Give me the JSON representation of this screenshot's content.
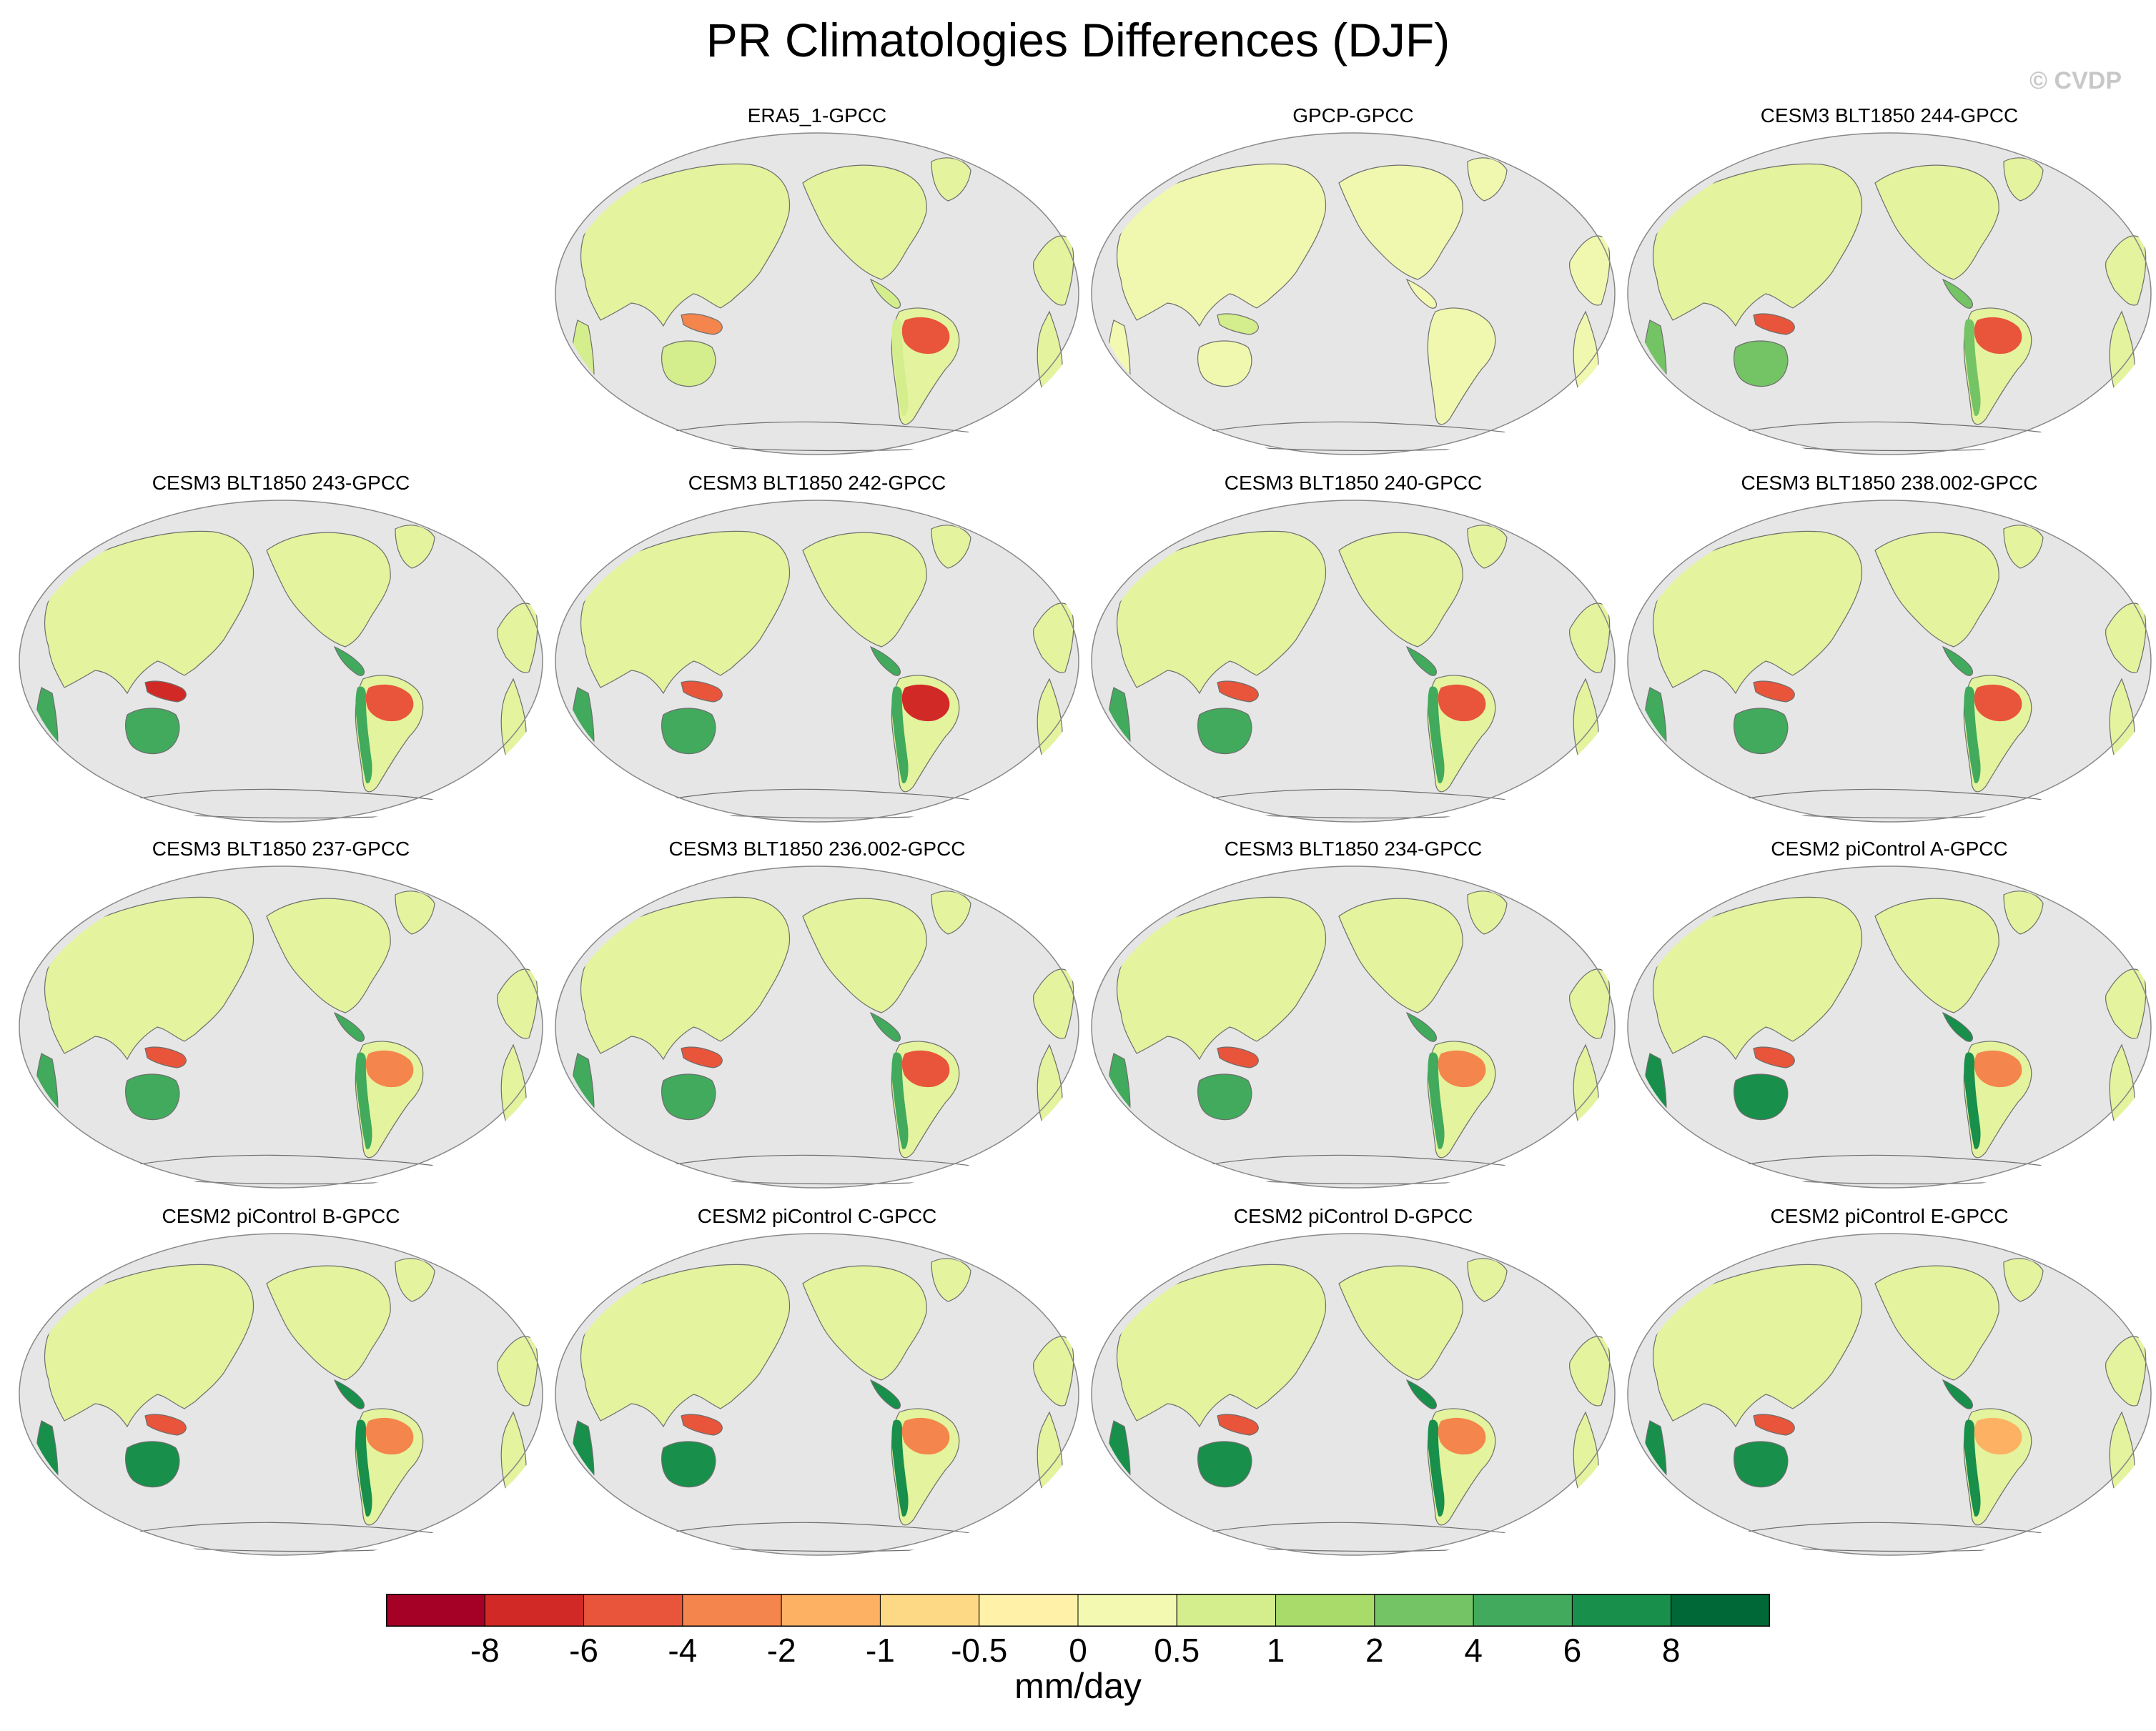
{
  "title": "PR Climatologies Differences (DJF)",
  "watermark": "© CVDP",
  "units": "mm/day",
  "colorbar": {
    "colors": [
      "#a50026",
      "#d12a26",
      "#e8553a",
      "#f4854c",
      "#fdb163",
      "#fed985",
      "#fff1a8",
      "#f3f9b1",
      "#d4ed8d",
      "#a9db6b",
      "#74c365",
      "#41aa5c",
      "#188f4a",
      "#006837"
    ],
    "tick_labels": [
      "-8",
      "-6",
      "-4",
      "-2",
      "-1",
      "-0.5",
      "0",
      "0.5",
      "1",
      "2",
      "4",
      "6",
      "8"
    ]
  },
  "map_colors": {
    "ocean": "#e6e6e6",
    "coast": "#6e6e6e"
  },
  "panels": [
    {
      "row": 0,
      "col": 1,
      "title": "ERA5_1-GPCC",
      "amazon": "#e8553a",
      "tropics": "#d4ed8d",
      "land": "#e3f39e",
      "seasia": "#f4854c",
      "style": "mixed"
    },
    {
      "row": 0,
      "col": 2,
      "title": "GPCP-GPCC",
      "amazon": "#d4ed8d",
      "tropics": "#f3f9b1",
      "land": "#f0f8af",
      "seasia": "#d4ed8d",
      "style": "flat"
    },
    {
      "row": 0,
      "col": 3,
      "title": "CESM3 BLT1850 244-GPCC",
      "amazon": "#e8553a",
      "tropics": "#74c365",
      "land": "#e3f39e",
      "seasia": "#e8553a",
      "style": "mixed"
    },
    {
      "row": 1,
      "col": 0,
      "title": "CESM3 BLT1850 243-GPCC",
      "amazon": "#e8553a",
      "tropics": "#41aa5c",
      "land": "#e3f39e",
      "seasia": "#d12a26",
      "style": "mixed"
    },
    {
      "row": 1,
      "col": 1,
      "title": "CESM3 BLT1850 242-GPCC",
      "amazon": "#d12a26",
      "tropics": "#41aa5c",
      "land": "#e3f39e",
      "seasia": "#e8553a",
      "style": "mixed"
    },
    {
      "row": 1,
      "col": 2,
      "title": "CESM3 BLT1850 240-GPCC",
      "amazon": "#e8553a",
      "tropics": "#41aa5c",
      "land": "#e3f39e",
      "seasia": "#e8553a",
      "style": "mixed"
    },
    {
      "row": 1,
      "col": 3,
      "title": "CESM3 BLT1850 238.002-GPCC",
      "amazon": "#e8553a",
      "tropics": "#41aa5c",
      "land": "#e3f39e",
      "seasia": "#e8553a",
      "style": "mixed"
    },
    {
      "row": 2,
      "col": 0,
      "title": "CESM3 BLT1850 237-GPCC",
      "amazon": "#f4854c",
      "tropics": "#41aa5c",
      "land": "#e3f39e",
      "seasia": "#e8553a",
      "style": "mixed"
    },
    {
      "row": 2,
      "col": 1,
      "title": "CESM3 BLT1850 236.002-GPCC",
      "amazon": "#e8553a",
      "tropics": "#41aa5c",
      "land": "#e3f39e",
      "seasia": "#e8553a",
      "style": "mixed"
    },
    {
      "row": 2,
      "col": 2,
      "title": "CESM3 BLT1850 234-GPCC",
      "amazon": "#f4854c",
      "tropics": "#41aa5c",
      "land": "#e3f39e",
      "seasia": "#e8553a",
      "style": "mixed"
    },
    {
      "row": 2,
      "col": 3,
      "title": "CESM2 piControl A-GPCC",
      "amazon": "#f4854c",
      "tropics": "#188f4a",
      "land": "#e3f39e",
      "seasia": "#e8553a",
      "style": "mixed"
    },
    {
      "row": 3,
      "col": 0,
      "title": "CESM2 piControl B-GPCC",
      "amazon": "#f4854c",
      "tropics": "#188f4a",
      "land": "#e3f39e",
      "seasia": "#e8553a",
      "style": "mixed"
    },
    {
      "row": 3,
      "col": 1,
      "title": "CESM2 piControl C-GPCC",
      "amazon": "#f4854c",
      "tropics": "#188f4a",
      "land": "#e3f39e",
      "seasia": "#e8553a",
      "style": "mixed"
    },
    {
      "row": 3,
      "col": 2,
      "title": "CESM2 piControl D-GPCC",
      "amazon": "#f4854c",
      "tropics": "#188f4a",
      "land": "#e3f39e",
      "seasia": "#e8553a",
      "style": "mixed"
    },
    {
      "row": 3,
      "col": 3,
      "title": "CESM2 piControl E-GPCC",
      "amazon": "#fdb163",
      "tropics": "#188f4a",
      "land": "#e3f39e",
      "seasia": "#e8553a",
      "style": "mixed"
    }
  ]
}
